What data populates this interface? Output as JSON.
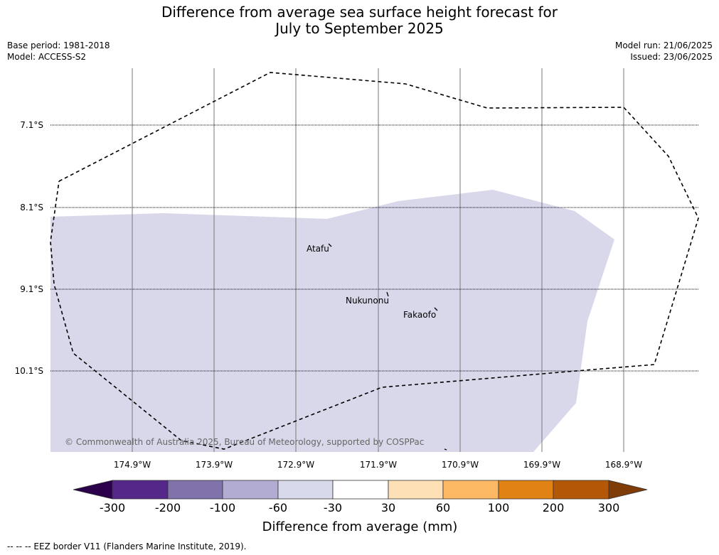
{
  "title": {
    "line1": "Difference from average sea surface height forecast for",
    "line2": "July to September 2025"
  },
  "info_left": {
    "base_period": "Base period: 1981-2018",
    "model": "Model: ACCESS-S2"
  },
  "info_right": {
    "model_run": "Model run: 21/06/2025",
    "issued": "Issued: 23/06/2025"
  },
  "map": {
    "lat_labels": [
      "7.1°S",
      "8.1°S",
      "9.1°S",
      "10.1°S"
    ],
    "lon_labels": [
      "174.9°W",
      "173.9°W",
      "172.9°W",
      "171.9°W",
      "170.9°W",
      "169.9°W",
      "168.9°W"
    ],
    "places": [
      "Atafu",
      "Nukunonu",
      "Fakaofo"
    ],
    "copyright": "© Commonwealth of Australia 2025, Bureau of Meteorology, supported by COSPPac",
    "anomaly_fill_color": "#d8d8ea",
    "anomaly_category": "-60 to -30 mm",
    "eez_line_style": "dashed",
    "grid_lines": "on"
  },
  "colorbar": {
    "tick_labels": [
      "-300",
      "-200",
      "-100",
      "-60",
      "-30",
      "30",
      "60",
      "100",
      "200",
      "300"
    ],
    "label": "Difference from average (mm)",
    "colors": [
      "#2d004b",
      "#542788",
      "#8073ac",
      "#b2abd2",
      "#d8daeb",
      "#ffffff",
      "#fee0b6",
      "#fdb863",
      "#e08214",
      "#b35806",
      "#7f3b08"
    ]
  },
  "footnote": "--  --  -- EEZ border V11 (Flanders Marine Institute, 2019)."
}
